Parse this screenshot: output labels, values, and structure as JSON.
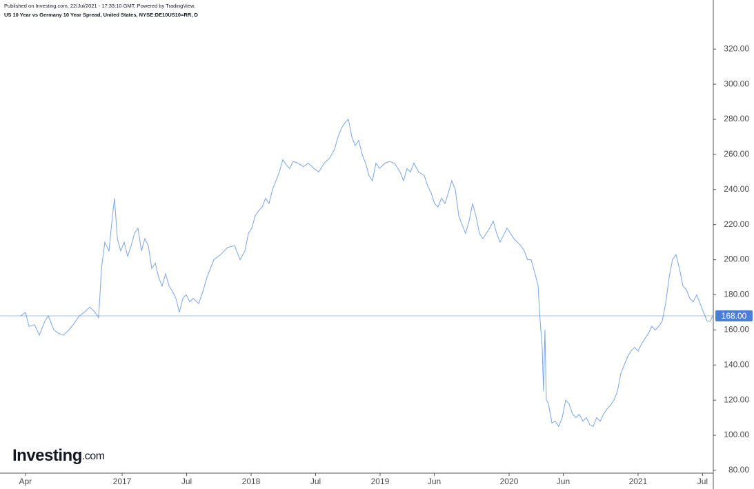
{
  "chart_data": {
    "type": "line",
    "subtitle": "Published on Investing.com, 22/Jul/2021 - 17:33:10 GMT, Powered by TradingView.",
    "title": "US 10 Year vs Germany 10 Year Spread, United States, NYSE:DE10US10=RR, D",
    "xlim": [
      2016.08,
      2021.578
    ],
    "xticks": [
      {
        "value": 2016.25,
        "label": "Apr"
      },
      2017,
      {
        "value": 2017.5,
        "label": "Jul"
      },
      2018,
      {
        "value": 2018.5,
        "label": "Jul"
      },
      2019,
      {
        "value": 2019.42,
        "label": "Jun"
      },
      2020,
      {
        "value": 2020.42,
        "label": "Jun"
      },
      2021,
      {
        "value": 2021.5,
        "label": "Jul"
      }
    ],
    "ylim": [
      78.4,
      335.4
    ],
    "yticks": [
      {
        "value": 80,
        "label": "80.00"
      },
      {
        "value": 100,
        "label": "100.00"
      },
      {
        "value": 120,
        "label": "120.00"
      },
      {
        "value": 140,
        "label": "140.00"
      },
      {
        "value": 160,
        "label": "160.00"
      },
      {
        "value": 180,
        "label": "180.00"
      },
      {
        "value": 200,
        "label": "200.00"
      },
      {
        "value": 220,
        "label": "220.00"
      },
      {
        "value": 240,
        "label": "240.00"
      },
      {
        "value": 260,
        "label": "260.00"
      },
      {
        "value": 280,
        "label": "280.00"
      },
      {
        "value": 300,
        "label": "300.00"
      },
      {
        "value": 320,
        "label": "320.00"
      }
    ],
    "last_value": 168,
    "last_value_label": "168.00",
    "last_value_color": "#4a7fd6",
    "series": [
      {
        "color": "#7aa5e8",
        "x": [
          2016.214,
          2016.251,
          2016.278,
          2016.321,
          2016.358,
          2016.401,
          2016.428,
          2016.471,
          2016.508,
          2016.545,
          2016.588,
          2016.631,
          2016.668,
          2016.706,
          2016.749,
          2016.791,
          2016.818,
          2016.84,
          2016.866,
          2016.898,
          2016.925,
          2016.941,
          2016.963,
          2016.989,
          2017.016,
          2017.043,
          2017.07,
          2017.096,
          2017.123,
          2017.15,
          2017.176,
          2017.203,
          2017.23,
          2017.257,
          2017.283,
          2017.31,
          2017.337,
          2017.364,
          2017.39,
          2017.417,
          2017.444,
          2017.471,
          2017.497,
          2017.524,
          2017.551,
          2017.594,
          2017.631,
          2017.658,
          2017.711,
          2017.765,
          2017.818,
          2017.872,
          2017.914,
          2017.952,
          2017.979,
          2018.005,
          2018.032,
          2018.059,
          2018.086,
          2018.112,
          2018.139,
          2018.166,
          2018.193,
          2018.219,
          2018.246,
          2018.273,
          2018.299,
          2018.326,
          2018.364,
          2018.406,
          2018.444,
          2018.487,
          2018.524,
          2018.567,
          2018.61,
          2018.647,
          2018.674,
          2018.701,
          2018.727,
          2018.754,
          2018.781,
          2018.807,
          2018.834,
          2018.861,
          2018.888,
          2018.914,
          2018.941,
          2018.968,
          2018.995,
          2019.037,
          2019.075,
          2019.112,
          2019.155,
          2019.182,
          2019.209,
          2019.235,
          2019.262,
          2019.299,
          2019.342,
          2019.369,
          2019.396,
          2019.422,
          2019.449,
          2019.476,
          2019.503,
          2019.529,
          2019.556,
          2019.583,
          2019.61,
          2019.636,
          2019.663,
          2019.69,
          2019.717,
          2019.743,
          2019.77,
          2019.797,
          2019.85,
          2019.877,
          2019.904,
          2019.93,
          2019.957,
          2019.984,
          2020.011,
          2020.037,
          2020.064,
          2020.091,
          2020.118,
          2020.144,
          2020.171,
          2020.198,
          2020.225,
          2020.241,
          2020.257,
          2020.267,
          2020.278,
          2020.289,
          2020.305,
          2020.332,
          2020.358,
          2020.385,
          2020.412,
          2020.439,
          2020.465,
          2020.492,
          2020.519,
          2020.545,
          2020.572,
          2020.599,
          2020.626,
          2020.652,
          2020.679,
          2020.706,
          2020.733,
          2020.759,
          2020.786,
          2020.813,
          2020.84,
          2020.866,
          2020.893,
          2020.92,
          2020.947,
          2020.973,
          2021.0,
          2021.027,
          2021.053,
          2021.08,
          2021.107,
          2021.134,
          2021.16,
          2021.187,
          2021.214,
          2021.241,
          2021.267,
          2021.294,
          2021.321,
          2021.348,
          2021.374,
          2021.401,
          2021.428,
          2021.455,
          2021.481,
          2021.508,
          2021.535,
          2021.561,
          2021.578
        ],
        "values": [
          168,
          170,
          162,
          163,
          157,
          165,
          168,
          160,
          158,
          157,
          160,
          164,
          168,
          170,
          173,
          170,
          167,
          195,
          210,
          205,
          225,
          235,
          212,
          205,
          210,
          202,
          208,
          215,
          218,
          205,
          212,
          208,
          195,
          198,
          190,
          185,
          192,
          185,
          182,
          178,
          170,
          178,
          180,
          176,
          178,
          175,
          183,
          190,
          200,
          203,
          207,
          208,
          200,
          205,
          215,
          218,
          225,
          228,
          230,
          235,
          232,
          240,
          245,
          250,
          257,
          254,
          252,
          256,
          255,
          253,
          255,
          252,
          250,
          255,
          258,
          263,
          270,
          275,
          278,
          280,
          270,
          265,
          268,
          260,
          255,
          248,
          245,
          255,
          252,
          255,
          256,
          255,
          250,
          245,
          252,
          250,
          255,
          250,
          248,
          242,
          238,
          232,
          230,
          235,
          232,
          238,
          245,
          240,
          225,
          220,
          215,
          222,
          232,
          225,
          215,
          212,
          218,
          222,
          215,
          210,
          214,
          218,
          215,
          212,
          210,
          208,
          205,
          200,
          200,
          193,
          185,
          165,
          150,
          125,
          160,
          120,
          118,
          107,
          108,
          105,
          110,
          120,
          118,
          112,
          110,
          112,
          108,
          110,
          106,
          105,
          110,
          108,
          112,
          115,
          117,
          120,
          125,
          135,
          140,
          145,
          148,
          150,
          148,
          152,
          155,
          158,
          162,
          160,
          162,
          165,
          175,
          190,
          200,
          203,
          195,
          185,
          183,
          178,
          176,
          180,
          175,
          170,
          165,
          165,
          168
        ]
      }
    ]
  },
  "logo": {
    "name": "Investing",
    "suffix": ".com"
  }
}
